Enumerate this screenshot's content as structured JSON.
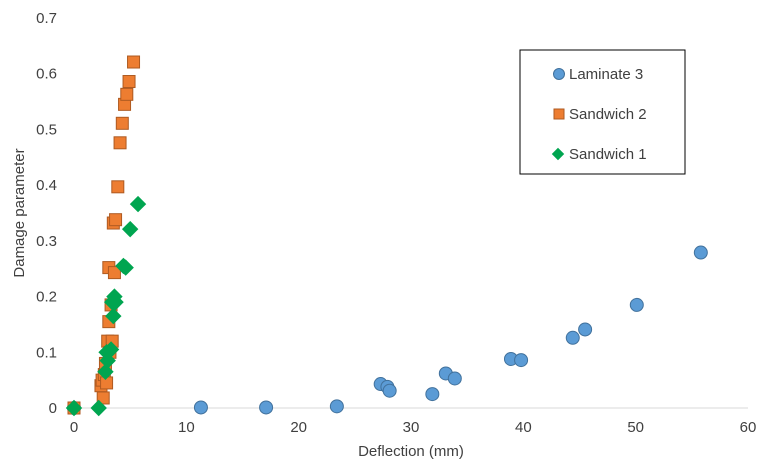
{
  "chart_data": {
    "type": "scatter",
    "xlabel": "Deflection (mm)",
    "ylabel": "Damage parameter",
    "xlim": [
      0,
      60
    ],
    "ylim": [
      0,
      0.7
    ],
    "xticks": [
      "0",
      "10",
      "20",
      "30",
      "40",
      "50",
      "60"
    ],
    "yticks": [
      "0",
      "0.1",
      "0.2",
      "0.3",
      "0.4",
      "0.5",
      "0.6",
      "0.7"
    ],
    "grid": false,
    "legend_position": "top-right",
    "series": [
      {
        "name": "Laminate 3",
        "marker": "circle",
        "color": "#5B9BD5",
        "edge": "#41719C",
        "points": [
          [
            0,
            0
          ],
          [
            11.3,
            0.001
          ],
          [
            17.1,
            0.001
          ],
          [
            23.4,
            0.003
          ],
          [
            27.3,
            0.043
          ],
          [
            27.9,
            0.038
          ],
          [
            28.1,
            0.031
          ],
          [
            31.9,
            0.025
          ],
          [
            33.1,
            0.062
          ],
          [
            33.9,
            0.053
          ],
          [
            38.9,
            0.088
          ],
          [
            39.8,
            0.086
          ],
          [
            44.4,
            0.126
          ],
          [
            45.5,
            0.141
          ],
          [
            50.1,
            0.185
          ],
          [
            55.8,
            0.279
          ]
        ]
      },
      {
        "name": "Sandwich 2",
        "marker": "square",
        "color": "#ED7D31",
        "edge": "#AE5A21",
        "points": [
          [
            0,
            0
          ],
          [
            2.4,
            0.04
          ],
          [
            2.5,
            0.05
          ],
          [
            2.6,
            0.018
          ],
          [
            2.7,
            0.06
          ],
          [
            2.8,
            0.08
          ],
          [
            2.9,
            0.045
          ],
          [
            3.0,
            0.12
          ],
          [
            3.1,
            0.155
          ],
          [
            3.1,
            0.252
          ],
          [
            3.2,
            0.1
          ],
          [
            3.3,
            0.185
          ],
          [
            3.4,
            0.12
          ],
          [
            3.5,
            0.332
          ],
          [
            3.6,
            0.243
          ],
          [
            3.7,
            0.338
          ],
          [
            3.9,
            0.397
          ],
          [
            4.1,
            0.476
          ],
          [
            4.3,
            0.511
          ],
          [
            4.5,
            0.545
          ],
          [
            4.7,
            0.563
          ],
          [
            4.9,
            0.586
          ],
          [
            5.3,
            0.621
          ]
        ]
      },
      {
        "name": "Sandwich 1",
        "marker": "diamond",
        "color": "#00A550",
        "edge": "#00A550",
        "points": [
          [
            0,
            0
          ],
          [
            2.2,
            0
          ],
          [
            2.8,
            0.065
          ],
          [
            2.9,
            0.1
          ],
          [
            3.0,
            0.085
          ],
          [
            3.3,
            0.105
          ],
          [
            3.4,
            0.19
          ],
          [
            3.5,
            0.165
          ],
          [
            3.6,
            0.2
          ],
          [
            3.7,
            0.19
          ],
          [
            4.4,
            0.255
          ],
          [
            4.6,
            0.252
          ],
          [
            5.0,
            0.321
          ],
          [
            5.7,
            0.366
          ]
        ]
      }
    ]
  }
}
